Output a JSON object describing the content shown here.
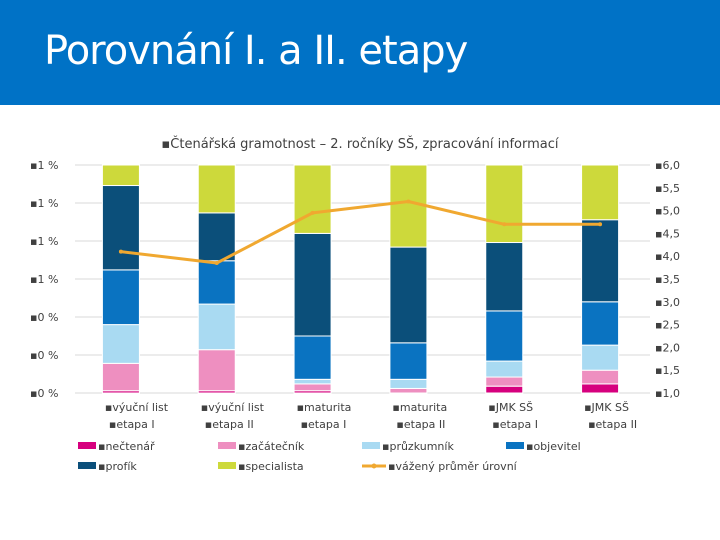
{
  "slide": {
    "title": "Porovnání I. a II. etapy"
  },
  "chart_data": {
    "type": "bar",
    "stacked": true,
    "percent_stacked": true,
    "title": "Čtenářská gramotnost – 2. ročníky SŠ, zpracování informací",
    "categories": [
      [
        "výuční list",
        "etapa I"
      ],
      [
        "výuční list",
        "etapa II"
      ],
      [
        "maturita",
        "etapa I"
      ],
      [
        "maturita",
        "etapa II"
      ],
      [
        "JMK SŠ",
        "etapa I"
      ],
      [
        "JMK SŠ",
        "etapa II"
      ]
    ],
    "left_axis_tick_labels": [
      "1 %",
      "1 %",
      "1 %",
      "1 %",
      "0 %",
      "0 %",
      "0 %"
    ],
    "right_axis": {
      "ylim": [
        1.0,
        6.0
      ],
      "ticks": [
        "6,0",
        "5,5",
        "5,0",
        "4,5",
        "4,0",
        "3,5",
        "3,0",
        "2,5",
        "2,0",
        "1,5",
        "1,0"
      ]
    },
    "series": [
      {
        "name": "nečtenář",
        "color": "#d6007e",
        "values": [
          1,
          1,
          1,
          0,
          3,
          4
        ]
      },
      {
        "name": "začátečník",
        "color": "#ee8fc0",
        "values": [
          12,
          18,
          3,
          2,
          4,
          6
        ]
      },
      {
        "name": "průzkumník",
        "color": "#a9daf2",
        "values": [
          17,
          20,
          2,
          4,
          7,
          11
        ]
      },
      {
        "name": "objevitel",
        "color": "#0a73c1",
        "values": [
          24,
          19,
          19,
          16,
          22,
          19
        ]
      },
      {
        "name": "profík",
        "color": "#0b4f7a",
        "values": [
          37,
          21,
          45,
          42,
          30,
          36
        ]
      },
      {
        "name": "specialista",
        "color": "#cdd93b",
        "values": [
          9,
          21,
          30,
          36,
          34,
          24
        ]
      }
    ],
    "line_series": {
      "name": "vážený průměr úrovní",
      "color": "#f0a830",
      "values": [
        4.1,
        3.85,
        4.95,
        5.2,
        4.7,
        4.7
      ]
    },
    "legend_placement": "bottom",
    "grid": true
  }
}
